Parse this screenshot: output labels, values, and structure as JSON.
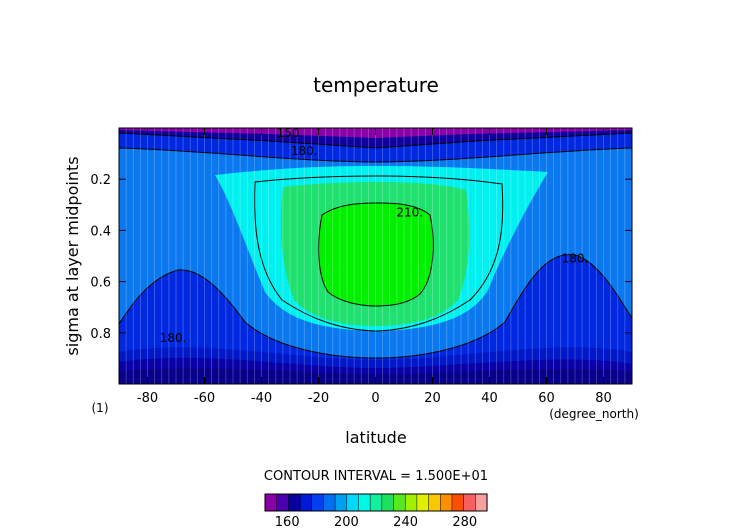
{
  "chart_data": {
    "type": "contour",
    "title": "temperature",
    "xlabel": "latitude",
    "xunits": "(degree_north)",
    "ylabel": "sigma at layer midpoints",
    "yunits": "(1)",
    "xlim": [
      -90,
      90
    ],
    "ylim": [
      0.0,
      1.0
    ],
    "y_inverted": true,
    "x_ticks": [
      -80,
      -60,
      -40,
      -20,
      0,
      20,
      40,
      60,
      80
    ],
    "y_ticks": [
      0.2,
      0.4,
      0.6,
      0.8
    ],
    "grid": true,
    "contour_interval_text": "CONTOUR INTERVAL = 1.500E+01",
    "contour_labels": [
      {
        "text": "150.",
        "lat": -30,
        "sigma": 0.02
      },
      {
        "text": "180.",
        "lat": -25,
        "sigma": 0.09
      },
      {
        "text": "210.",
        "lat": 12,
        "sigma": 0.33
      },
      {
        "text": "180.",
        "lat": 70,
        "sigma": 0.51
      },
      {
        "text": "180.",
        "lat": -71,
        "sigma": 0.82
      }
    ],
    "colorbar": {
      "ticks": [
        160,
        200,
        240,
        280
      ],
      "range": [
        145,
        295
      ],
      "colors": [
        "#8a00a8",
        "#4a00b0",
        "#0a00a0",
        "#0018d8",
        "#0040f0",
        "#0070f0",
        "#00a0f0",
        "#00d8f8",
        "#00f8e8",
        "#10f0a0",
        "#20e060",
        "#58e820",
        "#a0f000",
        "#e0f000",
        "#f8c800",
        "#f89000",
        "#f85000",
        "#f86060",
        "#f8a0a0"
      ]
    },
    "levels": [
      {
        "range": "<150",
        "color": "#8a00a8"
      },
      {
        "range": "150-165",
        "color": "#1000a0"
      },
      {
        "range": "165-180",
        "color": "#0028e0"
      },
      {
        "range": "180-195",
        "color": "#0a78f0"
      },
      {
        "range": "195-210",
        "color": "#00f0f0"
      },
      {
        "range": "210-225",
        "color": "#20e070"
      },
      {
        "range": ">225",
        "color": "#00f000"
      }
    ]
  }
}
